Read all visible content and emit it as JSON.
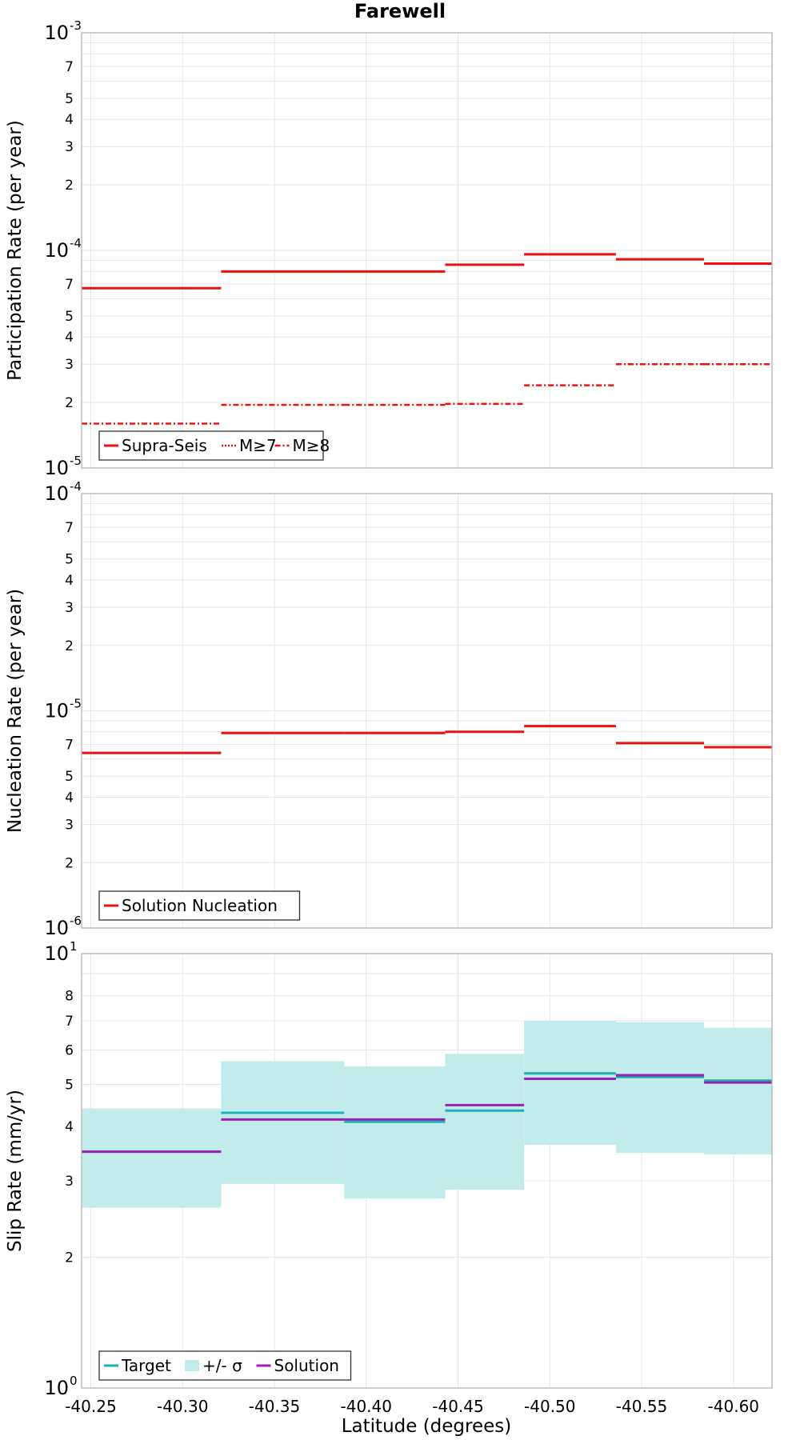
{
  "title": "Farewell",
  "xlabel": "Latitude (degrees)",
  "xticks": [
    "-40.25",
    "-40.30",
    "-40.35",
    "-40.40",
    "-40.45",
    "-40.50",
    "-40.55",
    "-40.60"
  ],
  "colors": {
    "red": "#ee1111",
    "target": "#17b3b3",
    "band": "#c2ecec",
    "solution": "#9b1fb3"
  },
  "chart_data": [
    {
      "type": "line",
      "panel": "participation",
      "ylabel": "Participation Rate (per year)",
      "yscale": "log",
      "ylim": [
        1e-05,
        0.001
      ],
      "xlim": [
        -40.245,
        -40.621
      ],
      "legend_position": "bottom-left",
      "series": [
        {
          "name": "Supra-Seis",
          "style": "solid",
          "segments": [
            [
              -40.245,
              -40.321,
              6.7e-05
            ],
            [
              -40.321,
              -40.388,
              8e-05
            ],
            [
              -40.388,
              -40.443,
              8e-05
            ],
            [
              -40.443,
              -40.486,
              8.6e-05
            ],
            [
              -40.486,
              -40.536,
              9.6e-05
            ],
            [
              -40.536,
              -40.584,
              9.1e-05
            ],
            [
              -40.584,
              -40.621,
              8.7e-05
            ]
          ]
        },
        {
          "name": "M≥7",
          "style": "dotted",
          "segments": [
            [
              -40.245,
              -40.321,
              6.7e-05
            ],
            [
              -40.321,
              -40.388,
              8e-05
            ],
            [
              -40.388,
              -40.443,
              8e-05
            ],
            [
              -40.443,
              -40.486,
              8.6e-05
            ],
            [
              -40.486,
              -40.536,
              9.6e-05
            ],
            [
              -40.536,
              -40.584,
              9.1e-05
            ],
            [
              -40.584,
              -40.621,
              8.7e-05
            ]
          ]
        },
        {
          "name": "M≥8",
          "style": "dashdot",
          "segments": [
            [
              -40.245,
              -40.321,
              1.6e-05
            ],
            [
              -40.321,
              -40.388,
              1.95e-05
            ],
            [
              -40.388,
              -40.443,
              1.95e-05
            ],
            [
              -40.443,
              -40.486,
              1.97e-05
            ],
            [
              -40.486,
              -40.536,
              2.4e-05
            ],
            [
              -40.536,
              -40.584,
              3e-05
            ],
            [
              -40.584,
              -40.621,
              3e-05
            ]
          ]
        }
      ]
    },
    {
      "type": "line",
      "panel": "nucleation",
      "ylabel": "Nucleation Rate (per year)",
      "yscale": "log",
      "ylim": [
        1e-06,
        0.0001
      ],
      "xlim": [
        -40.245,
        -40.621
      ],
      "legend_position": "bottom-left",
      "series": [
        {
          "name": "Solution Nucleation",
          "style": "solid",
          "segments": [
            [
              -40.245,
              -40.321,
              6.4e-06
            ],
            [
              -40.321,
              -40.388,
              7.9e-06
            ],
            [
              -40.388,
              -40.443,
              7.9e-06
            ],
            [
              -40.443,
              -40.486,
              8e-06
            ],
            [
              -40.486,
              -40.536,
              8.5e-06
            ],
            [
              -40.536,
              -40.584,
              7.1e-06
            ],
            [
              -40.584,
              -40.621,
              6.8e-06
            ]
          ]
        }
      ]
    },
    {
      "type": "line",
      "panel": "slip",
      "ylabel": "Slip Rate (mm/yr)",
      "yscale": "log",
      "ylim": [
        1,
        10
      ],
      "xlim": [
        -40.245,
        -40.621
      ],
      "legend_position": "bottom-left",
      "series": [
        {
          "name": "Target",
          "style": "solid",
          "segments": [
            [
              -40.245,
              -40.321,
              3.5
            ],
            [
              -40.321,
              -40.388,
              4.3
            ],
            [
              -40.388,
              -40.443,
              4.1
            ],
            [
              -40.443,
              -40.486,
              4.35
            ],
            [
              -40.486,
              -40.536,
              5.3
            ],
            [
              -40.536,
              -40.584,
              5.2
            ],
            [
              -40.584,
              -40.621,
              5.1
            ]
          ]
        },
        {
          "name": "+/- σ",
          "style": "band",
          "segments": [
            [
              -40.245,
              -40.321,
              2.6,
              4.4
            ],
            [
              -40.321,
              -40.388,
              2.95,
              5.65
            ],
            [
              -40.388,
              -40.443,
              2.73,
              5.5
            ],
            [
              -40.443,
              -40.486,
              2.86,
              5.88
            ],
            [
              -40.486,
              -40.536,
              3.63,
              7.0
            ],
            [
              -40.536,
              -40.584,
              3.48,
              6.95
            ],
            [
              -40.584,
              -40.621,
              3.45,
              6.75
            ]
          ]
        },
        {
          "name": "Solution",
          "style": "solid",
          "segments": [
            [
              -40.245,
              -40.321,
              3.5
            ],
            [
              -40.321,
              -40.388,
              4.15
            ],
            [
              -40.388,
              -40.443,
              4.15
            ],
            [
              -40.443,
              -40.486,
              4.48
            ],
            [
              -40.486,
              -40.536,
              5.15
            ],
            [
              -40.536,
              -40.584,
              5.25
            ],
            [
              -40.584,
              -40.621,
              5.05
            ]
          ]
        }
      ]
    }
  ]
}
